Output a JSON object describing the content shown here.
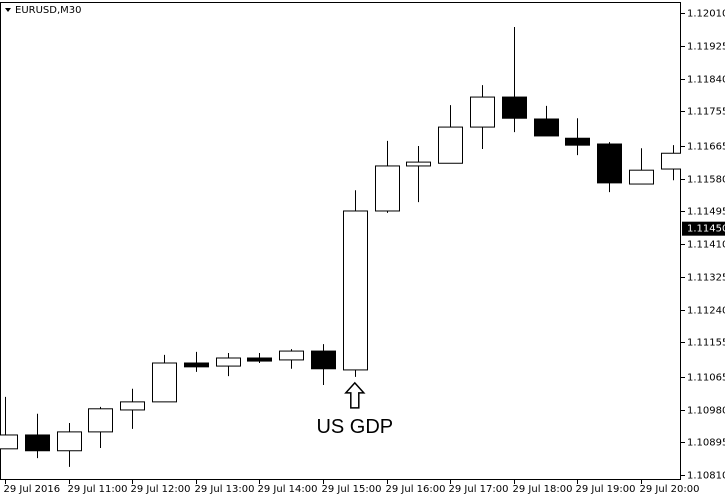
{
  "chart_data": {
    "type": "candlestick",
    "title": "EURUSD,M30",
    "categories": [
      "29 Jul 2016",
      null,
      "29 Jul 11:00",
      null,
      "29 Jul 12:00",
      null,
      "29 Jul 13:00",
      null,
      "29 Jul 14:00",
      null,
      "29 Jul 15:00",
      null,
      "29 Jul 16:00",
      null,
      "29 Jul 17:00",
      null,
      "29 Jul 18:00",
      null,
      "29 Jul 19:00",
      null,
      "29 Jul 20:00",
      null
    ],
    "series": [
      {
        "name": "open",
        "values": [
          1.10878,
          1.10914,
          1.10873,
          1.10922,
          1.10979,
          1.11,
          1.11101,
          1.11093,
          1.11114,
          1.11109,
          1.11132,
          1.11083,
          1.11496,
          1.11613,
          1.1162,
          1.11714,
          1.11792,
          1.11735,
          1.11685,
          1.1167,
          1.11566,
          1.11605
        ]
      },
      {
        "name": "high",
        "values": [
          1.11013,
          1.10969,
          1.10945,
          1.10987,
          1.11034,
          1.11122,
          1.1113,
          1.11127,
          1.11127,
          1.11137,
          1.1115,
          1.1155,
          1.11678,
          1.11665,
          1.11771,
          1.11823,
          1.11974,
          1.11769,
          1.11737,
          1.11675,
          1.11659,
          1.11667
        ]
      },
      {
        "name": "low",
        "values": [
          1.10878,
          1.10854,
          1.10831,
          1.1088,
          1.1093,
          1.11,
          1.11078,
          1.11067,
          1.11101,
          1.11086,
          1.11044,
          1.11065,
          1.11491,
          1.11519,
          1.1162,
          1.11657,
          1.11701,
          1.11691,
          1.11641,
          1.11545,
          1.11566,
          1.11576
        ]
      },
      {
        "name": "close",
        "values": [
          1.10914,
          1.10873,
          1.10922,
          1.10982,
          1.11,
          1.11101,
          1.11091,
          1.11114,
          1.11106,
          1.11132,
          1.11086,
          1.11496,
          1.11613,
          1.11623,
          1.11714,
          1.11792,
          1.11737,
          1.11691,
          1.11667,
          1.11569,
          1.11602,
          1.11646
        ]
      }
    ],
    "up_color": "#ffffff",
    "down_color": "#000000",
    "stroke_color": "#000000",
    "ylim": [
      1.10797,
      1.12039
    ],
    "yticks": [
      {
        "value": 1.1201,
        "label": "1.12010"
      },
      1.11925,
      {
        "value": 1.1184,
        "label": "1.11840"
      },
      1.11755,
      1.11665,
      {
        "value": 1.1158,
        "label": "1.11580"
      },
      1.11495,
      {
        "value": 1.1141,
        "label": "1.11410"
      },
      1.11325,
      {
        "value": 1.1124,
        "label": "1.11240"
      },
      1.11155,
      1.11065,
      {
        "value": 1.1098,
        "label": "1.10980"
      },
      1.10895,
      {
        "value": 1.1081,
        "label": "1.10810"
      }
    ],
    "current_price": {
      "value": 1.1145,
      "label": "1.11450"
    },
    "annotation": {
      "text": "US GDP",
      "index": 11
    }
  }
}
